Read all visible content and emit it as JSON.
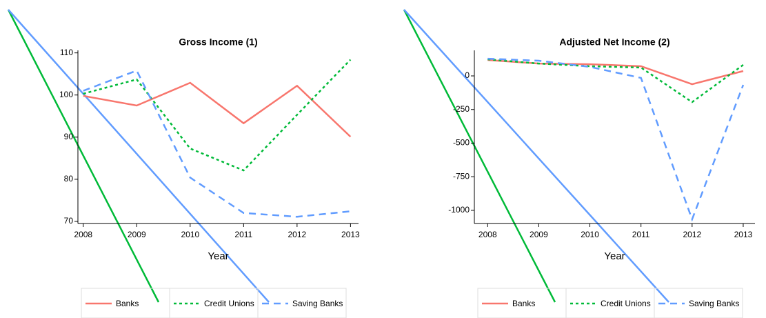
{
  "chart_data": [
    {
      "type": "line",
      "title": "Gross Income (1)",
      "x_label": "Year",
      "x": [
        2008,
        2009,
        2010,
        2011,
        2012,
        2013
      ],
      "xlim": [
        2007.9,
        2013.15
      ],
      "xticks": [
        2008,
        2009,
        2010,
        2011,
        2012,
        2013
      ],
      "ylim": [
        69.5,
        110.6
      ],
      "yticks": [
        70,
        80,
        90,
        100,
        110
      ],
      "series": [
        {
          "name": "Banks",
          "color": "#f8766d",
          "dash": "solid",
          "values": [
            99.8,
            97.5,
            102.9,
            93.3,
            102.2,
            90.1
          ]
        },
        {
          "name": "Credit Unions",
          "color": "#00ba38",
          "dash": "dotted",
          "values": [
            100.3,
            103.7,
            87.3,
            82.1,
            95.3,
            108.4
          ]
        },
        {
          "name": "Saving Banks",
          "color": "#619cff",
          "dash": "dashed",
          "values": [
            101.0,
            105.8,
            80.4,
            72.0,
            71.1,
            72.4
          ]
        }
      ]
    },
    {
      "type": "line",
      "title": "Adjusted Net Income (2)",
      "x_label": "Year",
      "x": [
        2008,
        2009,
        2010,
        2011,
        2012,
        2013
      ],
      "xlim": [
        2007.74,
        2013.23
      ],
      "xticks": [
        2008,
        2009,
        2010,
        2011,
        2012,
        2013
      ],
      "ylim": [
        -1098,
        190
      ],
      "yticks": [
        0,
        -250,
        -500,
        -750,
        -1000
      ],
      "series": [
        {
          "name": "Banks",
          "color": "#f8766d",
          "dash": "solid",
          "values": [
            118,
            92,
            87,
            72,
            -62,
            36
          ]
        },
        {
          "name": "Credit Unions",
          "color": "#00ba38",
          "dash": "dotted",
          "values": [
            123,
            92,
            72,
            62,
            -195,
            82
          ]
        },
        {
          "name": "Saving Banks",
          "color": "#619cff",
          "dash": "dashed",
          "values": [
            128,
            113,
            67,
            -15,
            -1067,
            -67
          ]
        }
      ]
    }
  ]
}
